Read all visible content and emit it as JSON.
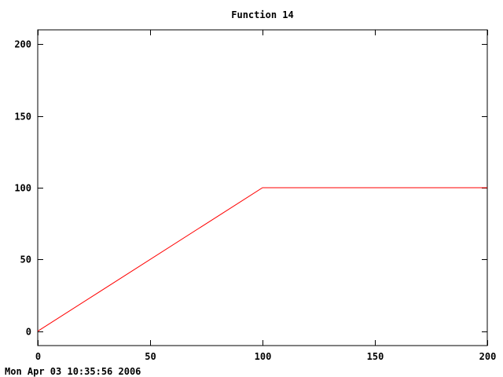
{
  "chart_data": {
    "type": "line",
    "title": "Function 14",
    "xlabel": "",
    "ylabel": "",
    "xlim": [
      0,
      200
    ],
    "ylim": [
      -10,
      210
    ],
    "x_ticks": [
      0,
      50,
      100,
      150,
      200
    ],
    "y_ticks": [
      0,
      50,
      100,
      150,
      200
    ],
    "grid": false,
    "series": [
      {
        "color": "#ff0000",
        "x": [
          0,
          100,
          200
        ],
        "y": [
          0,
          100,
          100
        ]
      }
    ]
  },
  "footer": {
    "timestamp": "Mon Apr 03 10:35:56 2006"
  }
}
